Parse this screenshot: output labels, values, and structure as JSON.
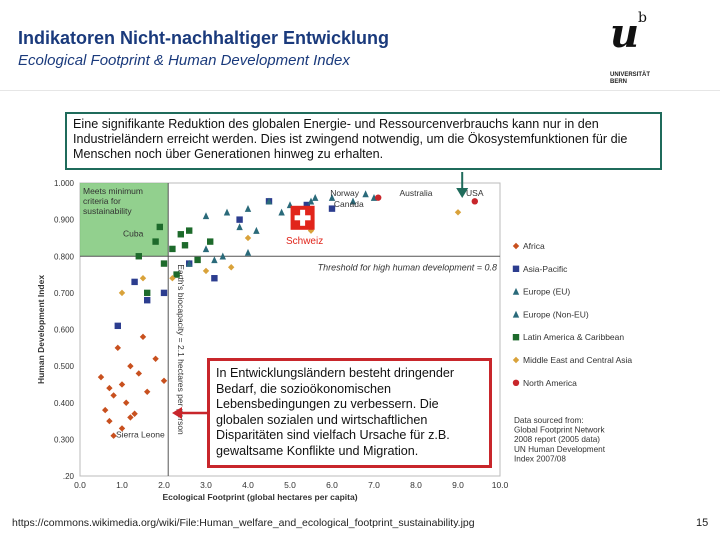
{
  "header": {
    "title": "Indikatoren Nicht-nachhaltiger Entwicklung",
    "subtitle": "Ecological Footprint & Human Development Index"
  },
  "logo": {
    "u_letter": "u",
    "b_letter": "b",
    "university_line1": "UNIVERSITÄT",
    "university_line2": "BERN"
  },
  "infobox": {
    "text": "Eine signifikante Reduktion des globalen Energie- und Ressourcenverbrauchs kann nur in den Industrieländern erreicht werden. Dies ist zwingend notwendig, um die Ökosystemfunktionen für die Menschen noch über Generationen hinweg zu erhalten."
  },
  "bodybox": {
    "text": "In Entwicklungsländern besteht dringender Bedarf, die sozioökonomischen Lebensbedingungen zu verbessern. Die globalen sozialen und wirtschaftlichen Disparitäten sind vielfach Ursache für z.B. gewaltsame Konflikte und Migration."
  },
  "footer": {
    "source_url": "https://commons.wikimedia.org/wiki/File:Human_welfare_and_ecological_footprint_sustainability.jpg",
    "page_number": "15"
  },
  "chart_data": {
    "type": "scatter",
    "xlabel": "Ecological Footprint (global hectares per capita)",
    "ylabel": "Human Development Index",
    "x_ticks": [
      "0.0",
      "1.0",
      "2.0",
      "3.0",
      "4.0",
      "5.0",
      "6.0",
      "7.0",
      "8.0",
      "9.0",
      "10.0"
    ],
    "y_ticks": [
      "0.300",
      "0.400",
      "0.500",
      "0.600",
      "0.700",
      "0.800",
      "0.900",
      "1.000"
    ],
    "xlim": [
      0,
      10
    ],
    "ylim": [
      0.2,
      1.0
    ],
    "sustainable_zone_label": "Meets minimum criteria for sustainability",
    "hdi_threshold": 0.8,
    "hdi_threshold_label": "Threshold for high human development = 0.8",
    "biocapacity_threshold": 2.1,
    "biocapacity_label": "Earth's biocapacity = 2.1 hectares per person",
    "switzerland_label": "Schweiz",
    "legend_title_note": "",
    "legend": [
      {
        "name": "Africa",
        "color": "#c8501e",
        "marker": "diamond"
      },
      {
        "name": "Asia-Pacific",
        "color": "#2c3d8f",
        "marker": "square"
      },
      {
        "name": "Europe (EU)",
        "color": "#2a6a7a",
        "marker": "triangle"
      },
      {
        "name": "Europe (Non-EU)",
        "color": "#2a6a7a",
        "marker": "triangle"
      },
      {
        "name": "Latin America & Caribbean",
        "color": "#1d6a2b",
        "marker": "square"
      },
      {
        "name": "Middle East and Central Asia",
        "color": "#d9a23a",
        "marker": "diamond"
      },
      {
        "name": "North America",
        "color": "#c8262b",
        "marker": "circle"
      }
    ],
    "annotations": [
      "Cuba",
      "Norway",
      "Australia",
      "USA",
      "Canada",
      "Sierra Leone"
    ],
    "data_source": "Data sourced from: Global Footprint Network 2008 report (2005 data) UN Human Development Index 2007/08",
    "series": [
      {
        "name": "Africa",
        "points": [
          [
            0.6,
            0.38
          ],
          [
            0.8,
            0.42
          ],
          [
            1.0,
            0.45
          ],
          [
            0.7,
            0.35
          ],
          [
            1.2,
            0.5
          ],
          [
            1.4,
            0.48
          ],
          [
            0.9,
            0.55
          ],
          [
            1.1,
            0.4
          ],
          [
            1.3,
            0.37
          ],
          [
            1.6,
            0.43
          ],
          [
            0.5,
            0.47
          ],
          [
            1.0,
            0.33
          ],
          [
            1.8,
            0.52
          ],
          [
            1.5,
            0.58
          ],
          [
            0.8,
            0.31
          ],
          [
            2.0,
            0.46
          ],
          [
            1.2,
            0.36
          ],
          [
            0.7,
            0.44
          ]
        ]
      },
      {
        "name": "Asia-Pacific",
        "points": [
          [
            0.9,
            0.61
          ],
          [
            1.3,
            0.73
          ],
          [
            2.6,
            0.78
          ],
          [
            3.2,
            0.74
          ],
          [
            4.5,
            0.95
          ],
          [
            5.4,
            0.94
          ],
          [
            2.0,
            0.7
          ],
          [
            1.6,
            0.68
          ],
          [
            6.0,
            0.93
          ],
          [
            3.8,
            0.9
          ]
        ]
      },
      {
        "name": "Europe (EU)",
        "points": [
          [
            3.0,
            0.91
          ],
          [
            3.5,
            0.92
          ],
          [
            4.0,
            0.93
          ],
          [
            4.5,
            0.95
          ],
          [
            5.0,
            0.94
          ],
          [
            5.5,
            0.95
          ],
          [
            6.0,
            0.96
          ],
          [
            6.5,
            0.95
          ],
          [
            7.0,
            0.96
          ],
          [
            3.8,
            0.88
          ],
          [
            4.2,
            0.87
          ],
          [
            5.2,
            0.9
          ],
          [
            4.8,
            0.92
          ]
        ]
      },
      {
        "name": "Europe (Non-EU)",
        "points": [
          [
            2.6,
            0.78
          ],
          [
            3.0,
            0.82
          ],
          [
            3.4,
            0.8
          ],
          [
            4.0,
            0.81
          ],
          [
            5.6,
            0.96
          ],
          [
            6.8,
            0.97
          ],
          [
            3.2,
            0.79
          ]
        ]
      },
      {
        "name": "Latin America & Caribbean",
        "points": [
          [
            1.8,
            0.84
          ],
          [
            2.2,
            0.82
          ],
          [
            2.4,
            0.86
          ],
          [
            2.6,
            0.87
          ],
          [
            2.0,
            0.78
          ],
          [
            2.3,
            0.75
          ],
          [
            1.4,
            0.8
          ],
          [
            1.6,
            0.7
          ],
          [
            2.8,
            0.79
          ],
          [
            2.5,
            0.83
          ],
          [
            1.9,
            0.88
          ],
          [
            3.1,
            0.84
          ]
        ]
      },
      {
        "name": "Middle East and Central Asia",
        "points": [
          [
            1.0,
            0.7
          ],
          [
            1.5,
            0.74
          ],
          [
            2.2,
            0.74
          ],
          [
            3.0,
            0.76
          ],
          [
            4.0,
            0.85
          ],
          [
            5.5,
            0.87
          ],
          [
            9.0,
            0.92
          ],
          [
            3.6,
            0.77
          ]
        ]
      },
      {
        "name": "North America",
        "points": [
          [
            9.4,
            0.95
          ],
          [
            7.1,
            0.96
          ]
        ]
      }
    ]
  }
}
